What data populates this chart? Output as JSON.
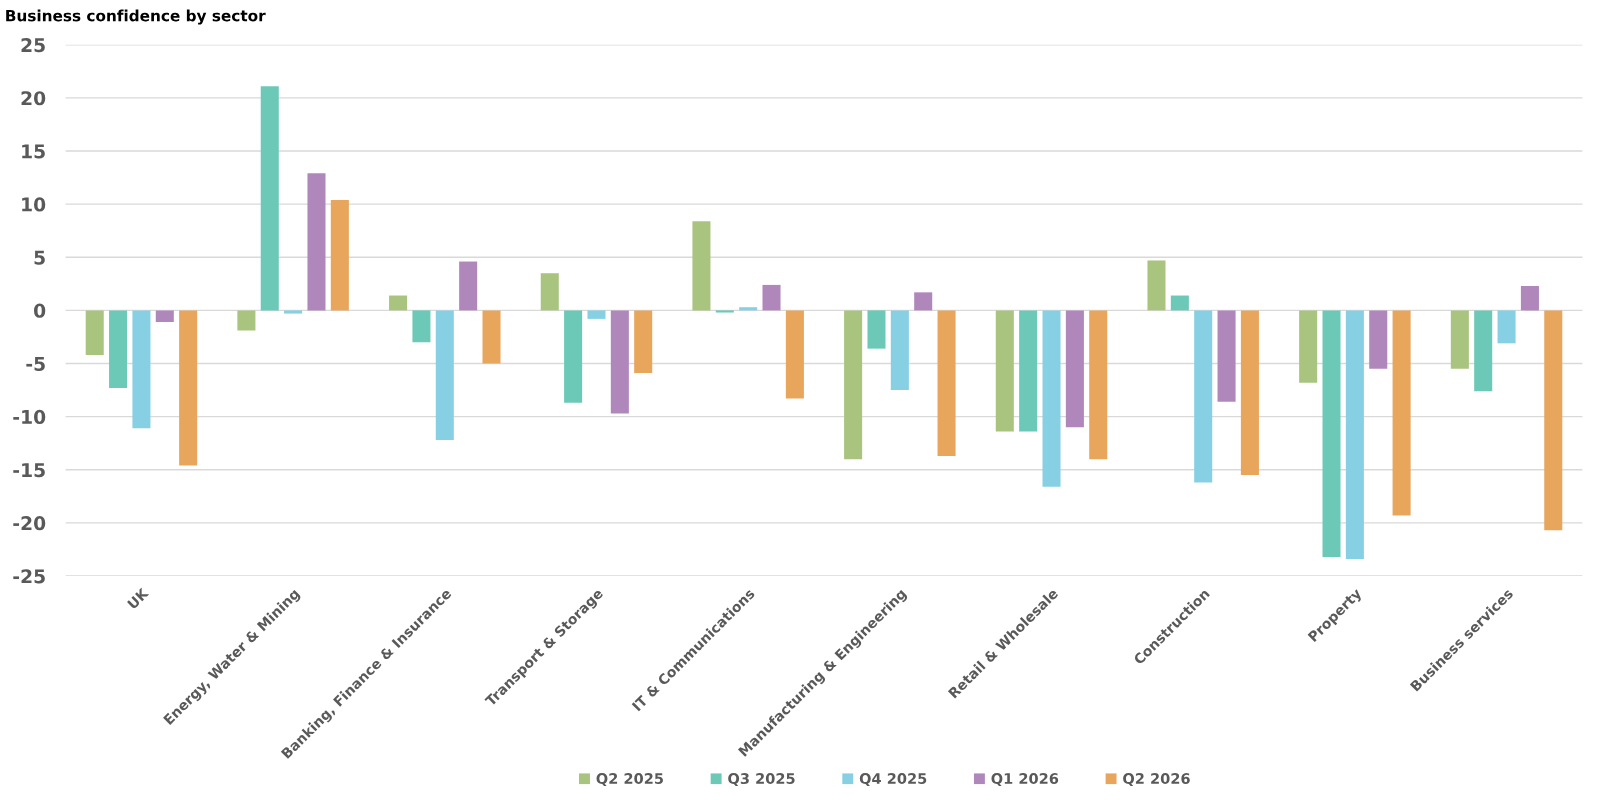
{
  "chart_data": {
    "type": "bar",
    "title": "Business confidence by sector",
    "categories": [
      "UK",
      "Energy, Water & Mining",
      "Banking, Finance & Insurance",
      "Transport & Storage",
      "IT & Communications",
      "Manufacturing & Engineering",
      "Retail & Wholesale",
      "Construction",
      "Property",
      "Business services"
    ],
    "series": [
      {
        "name": "Q2 2025",
        "color": "#a9c47f",
        "values": [
          -4.2,
          -1.9,
          1.4,
          3.5,
          8.4,
          -14.0,
          -11.4,
          4.7,
          -6.8,
          -5.5
        ]
      },
      {
        "name": "Q3 2025",
        "color": "#6cc9b7",
        "values": [
          -7.3,
          21.1,
          -3.0,
          -8.7,
          -0.2,
          -3.6,
          -11.4,
          1.4,
          -23.2,
          -7.6
        ]
      },
      {
        "name": "Q4 2025",
        "color": "#87d0e4",
        "values": [
          -11.1,
          -0.3,
          -12.2,
          -0.8,
          0.3,
          -7.5,
          -16.6,
          -16.2,
          -23.4,
          -3.1
        ]
      },
      {
        "name": "Q1 2026",
        "color": "#b087bb",
        "values": [
          -1.1,
          12.9,
          4.6,
          -9.7,
          2.4,
          1.7,
          -11.0,
          -8.6,
          -5.5,
          2.3
        ]
      },
      {
        "name": "Q2 2026",
        "color": "#e8a55c",
        "values": [
          -14.6,
          10.4,
          -5.0,
          -5.9,
          -8.3,
          -13.7,
          -14.0,
          -15.5,
          -19.3,
          -20.7
        ]
      }
    ],
    "ylim": [
      -25,
      25
    ],
    "yticks": [
      -25,
      -20,
      -15,
      -10,
      -5,
      0,
      5,
      10,
      15,
      20,
      25
    ],
    "grid": "y",
    "legend": "bottom"
  }
}
